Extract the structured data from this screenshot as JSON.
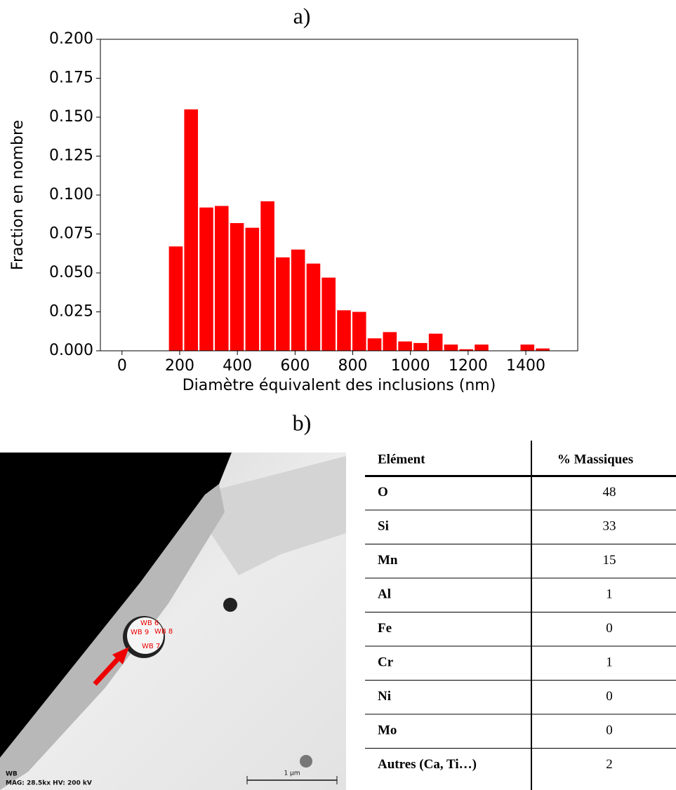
{
  "chart_data": {
    "type": "histogram",
    "title": "a)",
    "xlabel": "Diamètre équivalent des inclusions (nm)",
    "ylabel": "Fraction en nombre",
    "bins": [
      160,
      213,
      266,
      319,
      372,
      425,
      478,
      531,
      584,
      637,
      690,
      743,
      796,
      849,
      902,
      955,
      1008,
      1061,
      1114,
      1167,
      1220,
      1273,
      1326,
      1379,
      1432,
      1485
    ],
    "values": [
      0.067,
      0.155,
      0.092,
      0.093,
      0.082,
      0.079,
      0.096,
      0.06,
      0.065,
      0.056,
      0.047,
      0.026,
      0.025,
      0.008,
      0.012,
      0.006,
      0.005,
      0.011,
      0.004,
      0.001,
      0.004,
      0,
      0,
      0.004,
      0.0015
    ],
    "color": "#ff0000",
    "xlim": [
      -75,
      1580
    ],
    "ylim": [
      0,
      0.2
    ],
    "xticks": [
      0,
      200,
      400,
      600,
      800,
      1000,
      1200,
      1400
    ],
    "yticks": [
      {
        "value": 0,
        "label": "0.000"
      },
      {
        "value": 0.025,
        "label": "0.025"
      },
      {
        "value": 0.05,
        "label": "0.050"
      },
      {
        "value": 0.075,
        "label": "0.075"
      },
      {
        "value": 0.1,
        "label": "0.100"
      },
      {
        "value": 0.125,
        "label": "0.125"
      },
      {
        "value": 0.15,
        "label": "0.150"
      },
      {
        "value": 0.175,
        "label": "0.175"
      },
      {
        "value": 0.2,
        "label": "0.200"
      }
    ]
  },
  "panel_b": {
    "label": "b)",
    "image": {
      "points": [
        "WB 6",
        "WB 9",
        "WB 8",
        "WB 7"
      ],
      "caption": "WB",
      "info": "MAG: 28.5kx   HV: 200 kV",
      "scale": "1 µm"
    },
    "table": {
      "header": [
        "Elément",
        "% Massiques"
      ],
      "rows": [
        [
          "O",
          48
        ],
        [
          "Si",
          33
        ],
        [
          "Mn",
          15
        ],
        [
          "Al",
          1
        ],
        [
          "Fe",
          0
        ],
        [
          "Cr",
          1
        ],
        [
          "Ni",
          0
        ],
        [
          "Mo",
          0
        ],
        [
          "Autres (Ca, Ti…)",
          2
        ]
      ]
    }
  }
}
